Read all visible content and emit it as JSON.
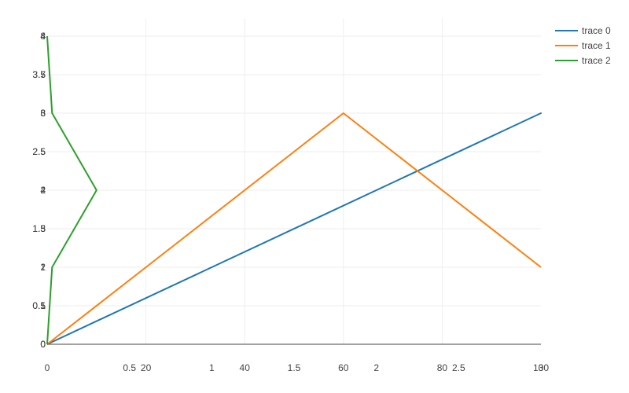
{
  "chart_data": {
    "type": "line",
    "x_ticks_axis_a": [
      "0",
      "0.5",
      "1",
      "1.5",
      "2",
      "2.5",
      "3"
    ],
    "x_ticks_axis_b": [
      "20",
      "40",
      "60",
      "80",
      "100"
    ],
    "y_ticks_axis_a": [
      "0",
      "0.5",
      "1",
      "1.5",
      "2",
      "2.5",
      "3",
      "3.5",
      "4"
    ],
    "y_ticks_axis_b": [
      "0",
      "0.5",
      "1",
      "1.5",
      "2",
      "2.5",
      "3",
      "3.5",
      "4"
    ],
    "y_ticks_axis_c": [
      "0",
      "1",
      "2",
      "3",
      "4",
      "5",
      "6",
      "7",
      "8"
    ],
    "xlim_a": [
      0,
      3
    ],
    "xlim_b": [
      0,
      100
    ],
    "ylim_a": [
      0,
      4
    ],
    "ylim_b": [
      0,
      4
    ],
    "ylim_c": [
      0,
      8
    ],
    "grid": true,
    "legend_position": "top-right",
    "series": [
      {
        "name": "trace 0",
        "color": "#1f77b4",
        "x": [
          0,
          1,
          2,
          3,
          2,
          1,
          0
        ],
        "y": [
          0,
          1,
          2,
          3,
          2,
          1,
          0
        ],
        "x_axis": "a",
        "y_axis": "a"
      },
      {
        "name": "trace 1",
        "color": "#ff7f0e",
        "x": [
          0,
          20,
          40,
          60,
          80,
          100
        ],
        "y": [
          0,
          1,
          2,
          3,
          2,
          1
        ],
        "x_axis": "b",
        "y_axis": "b"
      },
      {
        "name": "trace 2",
        "color": "#2ca02c",
        "x": [
          0,
          1,
          10,
          1,
          0
        ],
        "y": [
          0,
          2,
          4,
          6,
          8
        ],
        "x_axis": "b",
        "y_axis": "c"
      }
    ]
  }
}
